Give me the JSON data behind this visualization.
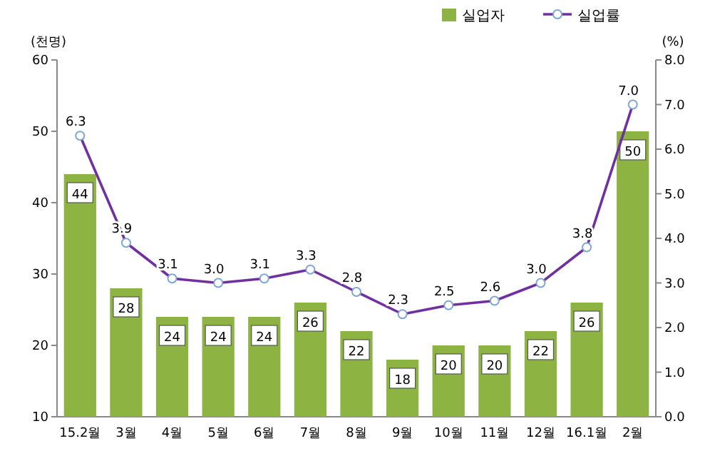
{
  "chart_data": {
    "type": "bar",
    "categories": [
      "15.2월",
      "3월",
      "4월",
      "5월",
      "6월",
      "7월",
      "8월",
      "9월",
      "10월",
      "11월",
      "12월",
      "16.1월",
      "2월"
    ],
    "ylabel": "(천명)",
    "y2label": "(%)",
    "ylim": [
      10,
      60
    ],
    "yticks": [
      10,
      20,
      30,
      40,
      50,
      60
    ],
    "y2lim": [
      0,
      8
    ],
    "y2ticks": [
      {
        "value": 0,
        "label": "0.0"
      },
      {
        "value": 1,
        "label": "1.0"
      },
      {
        "value": 2,
        "label": "2.0"
      },
      {
        "value": 3,
        "label": "3.0"
      },
      {
        "value": 4,
        "label": "4.0"
      },
      {
        "value": 5,
        "label": "5.0"
      },
      {
        "value": 6,
        "label": "6.0"
      },
      {
        "value": 7,
        "label": "7.0"
      },
      {
        "value": 8,
        "label": "8.0"
      }
    ],
    "legend": "top right",
    "grid": false,
    "series": [
      {
        "name": "실업자",
        "color": "#8db443",
        "values": [
          44,
          28,
          24,
          24,
          24,
          26,
          22,
          18,
          20,
          20,
          22,
          26,
          50
        ],
        "value_labels": [
          "44",
          "28",
          "24",
          "24",
          "24",
          "26",
          "22",
          "18",
          "20",
          "20",
          "22",
          "26",
          "50"
        ]
      },
      {
        "name": "실업률",
        "type": "line",
        "axis": "y2",
        "color": "#7030a0",
        "marker": "circle",
        "values": [
          6.3,
          3.9,
          3.1,
          3.0,
          3.1,
          3.3,
          2.8,
          2.3,
          2.5,
          2.6,
          3.0,
          3.8,
          7.0
        ],
        "value_labels": [
          "6.3",
          "3.9",
          "3.1",
          "3.0",
          "3.1",
          "3.3",
          "2.8",
          "2.3",
          "2.5",
          "2.6",
          "3.0",
          "3.8",
          "7.0"
        ]
      }
    ]
  }
}
